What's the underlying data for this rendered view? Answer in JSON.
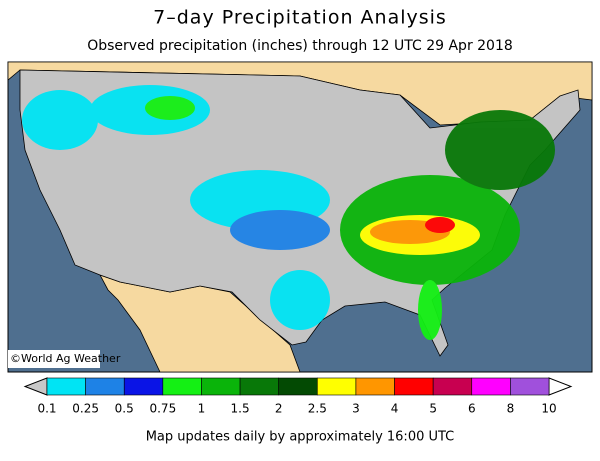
{
  "header": {
    "title": "7–day Precipitation Analysis",
    "subtitle": "Observed precipitation (inches) through 12 UTC 29 Apr 2018"
  },
  "map": {
    "credit": "©World Ag Weather"
  },
  "legend": {
    "ticks": [
      0.1,
      0.25,
      0.5,
      0.75,
      1,
      1.5,
      2,
      2.5,
      3,
      4,
      5,
      6,
      8,
      10
    ],
    "colors": [
      "#00e4f4",
      "#1e82e6",
      "#0a14e6",
      "#14f014",
      "#0ab40a",
      "#087808",
      "#034a03",
      "#ffff00",
      "#ff9600",
      "#ff0000",
      "#c80050",
      "#ff00ff",
      "#a050dc"
    ],
    "below_color": "#c8c8c8",
    "above_color": "#ffffff"
  },
  "footer": "Map updates daily by approximately 16:00 UTC"
}
